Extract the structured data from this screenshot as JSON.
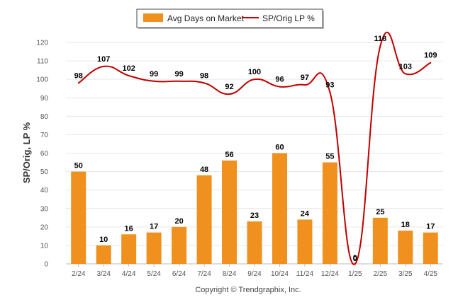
{
  "chart_data": {
    "type": "bar",
    "categories": [
      "2/24",
      "3/24",
      "4/24",
      "5/24",
      "6/24",
      "7/24",
      "8/24",
      "9/24",
      "10/24",
      "11/24",
      "12/24",
      "1/25",
      "2/25",
      "3/25",
      "4/25"
    ],
    "series": [
      {
        "name": "Avg Days on Market",
        "type": "bar",
        "color": "#F0901E",
        "values": [
          50,
          10,
          16,
          17,
          20,
          48,
          56,
          23,
          60,
          24,
          55,
          0,
          25,
          18,
          17
        ]
      },
      {
        "name": "SP/Orig LP %",
        "type": "line",
        "color": "#C00000",
        "values": [
          98,
          107,
          102,
          99,
          99,
          98,
          92,
          100,
          96,
          97,
          93,
          0,
          118,
          103,
          109
        ]
      }
    ],
    "ylabel": "SP/Orig, LP %",
    "ylim": [
      0,
      120
    ],
    "yticks": [
      0,
      10,
      20,
      30,
      40,
      50,
      60,
      70,
      80,
      90,
      100,
      110,
      120
    ],
    "grid": true,
    "legend_position": "top-center",
    "footer": "Copyright © Trendgraphix, Inc."
  }
}
